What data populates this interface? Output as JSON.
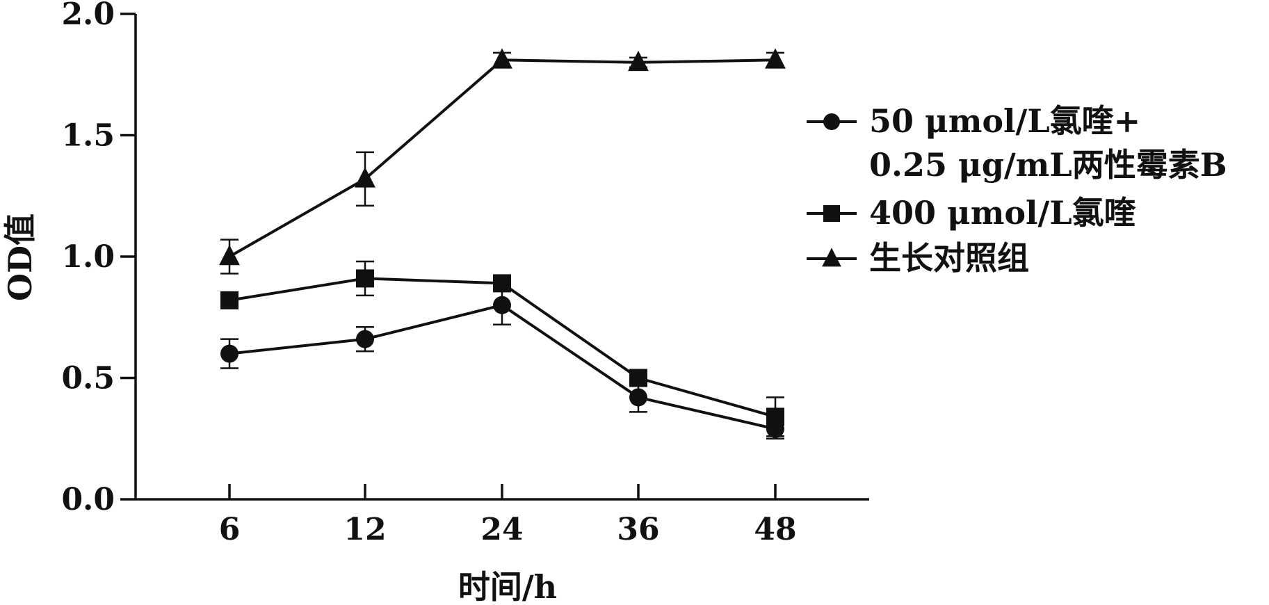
{
  "chart_data": {
    "type": "line",
    "xlabel": "时间/h",
    "ylabel": "OD值",
    "categories": [
      "6",
      "12",
      "24",
      "36",
      "48"
    ],
    "x": [
      6,
      12,
      24,
      36,
      48
    ],
    "ylim": [
      0.0,
      2.0
    ],
    "yticks": [
      "0.0",
      "0.5",
      "1.0",
      "1.5",
      "2.0"
    ],
    "grid": false,
    "legend_position": "right",
    "series": [
      {
        "name_lines": [
          "50 μmol/L氯喹+",
          "0.25 μg/mL两性霉素B"
        ],
        "marker": "circle",
        "values": [
          0.6,
          0.66,
          0.8,
          0.42,
          0.29
        ],
        "errors": [
          0.06,
          0.05,
          0.08,
          0.06,
          0.04
        ]
      },
      {
        "name": "400 μmol/L氯喹",
        "marker": "square",
        "values": [
          0.82,
          0.91,
          0.89,
          0.5,
          0.34
        ],
        "errors": [
          0.03,
          0.07,
          0.03,
          0.03,
          0.08
        ]
      },
      {
        "name": "生长对照组",
        "marker": "triangle",
        "values": [
          1.0,
          1.32,
          1.81,
          1.8,
          1.81
        ],
        "errors": [
          0.07,
          0.11,
          0.03,
          0.02,
          0.03
        ]
      }
    ]
  }
}
